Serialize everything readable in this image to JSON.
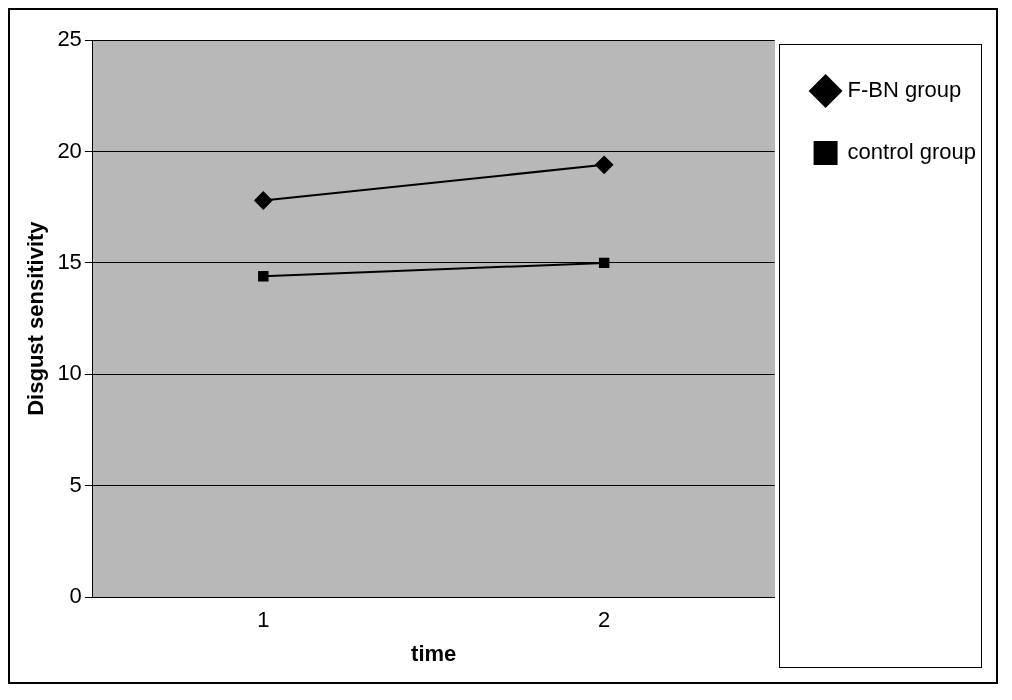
{
  "chart_data": {
    "type": "line",
    "xlabel": "time",
    "ylabel": "Disgust sensitivity",
    "categories": [
      "1",
      "2"
    ],
    "series": [
      {
        "name": "F-BN group",
        "color": "#000000",
        "values": [
          17.8,
          19.4
        ],
        "marker": "diamond"
      },
      {
        "name": "control group",
        "color": "#000000",
        "values": [
          14.4,
          15.0
        ],
        "marker": "square"
      }
    ],
    "ylim": [
      0,
      25
    ],
    "yticks": [
      0,
      5,
      10,
      15,
      20,
      25
    ],
    "grid": "y",
    "legend": "right",
    "line_style": "solid"
  }
}
